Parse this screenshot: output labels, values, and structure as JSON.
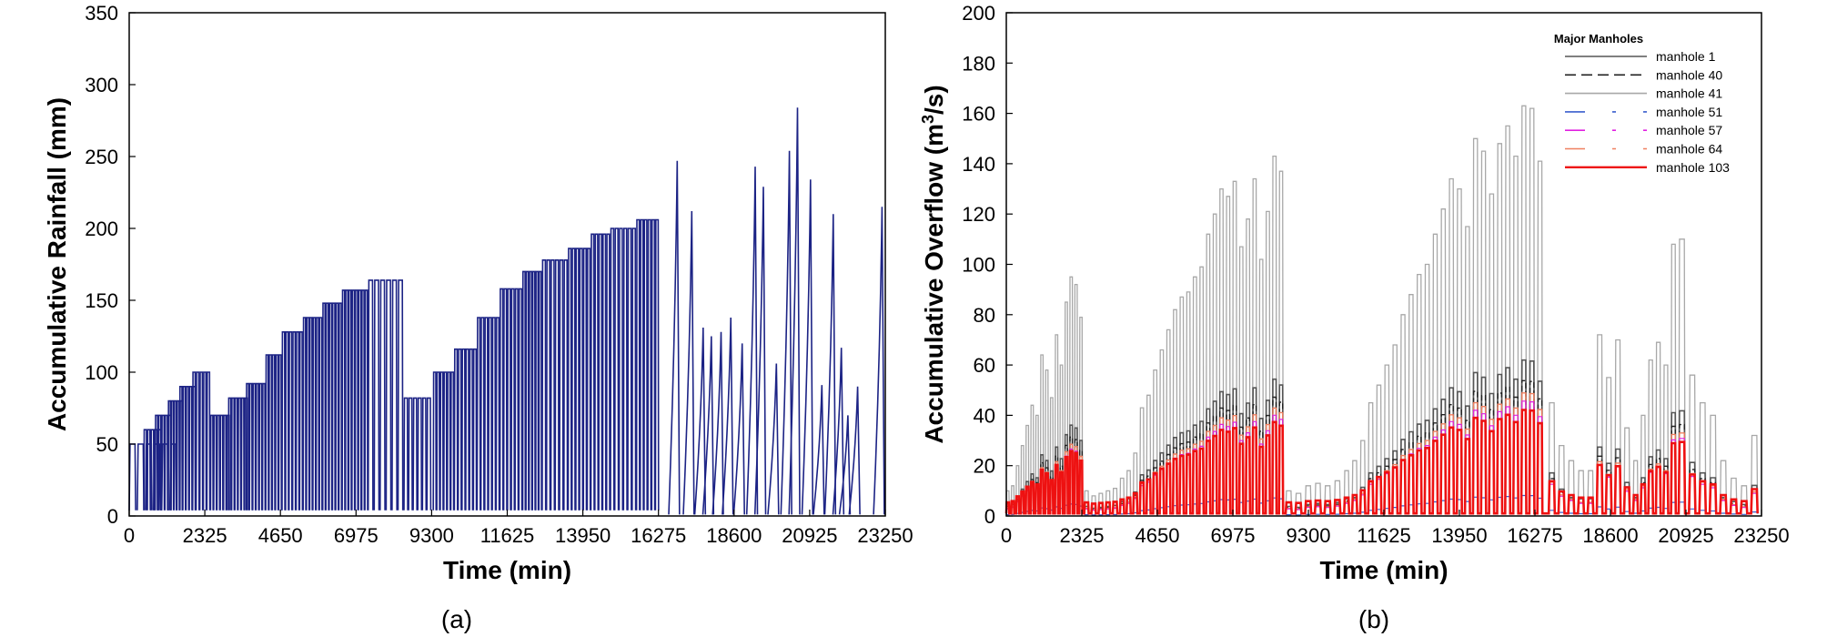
{
  "colors": {
    "rainfall": "#1c2385",
    "frame": "#000000"
  },
  "chart_data": [
    {
      "type": "line",
      "panel_label": "(a)",
      "xlabel": "Time (min)",
      "ylabel": "Accumulative Rainfall (mm)",
      "xlim": [
        0,
        23250
      ],
      "ylim": [
        0,
        350
      ],
      "xticks": [
        0,
        2325,
        4650,
        6975,
        9300,
        11625,
        13950,
        16275,
        18600,
        20925,
        23250
      ],
      "yticks": [
        0,
        50,
        100,
        150,
        200,
        250,
        300,
        350
      ],
      "series": [
        {
          "color": "#1c2385",
          "events": [
            {
              "start": 0,
              "end": 1500,
              "peak": 50,
              "n": 6
            },
            {
              "start": 450,
              "end": 1000,
              "peak": 60,
              "n": 5
            },
            {
              "start": 800,
              "end": 1300,
              "peak": 70,
              "n": 5
            },
            {
              "start": 1200,
              "end": 1650,
              "peak": 80,
              "n": 5
            },
            {
              "start": 1550,
              "end": 2050,
              "peak": 90,
              "n": 5
            },
            {
              "start": 1950,
              "end": 2500,
              "peak": 100,
              "n": 5
            },
            {
              "start": 2500,
              "end": 3100,
              "peak": 70,
              "n": 6
            },
            {
              "start": 3050,
              "end": 3650,
              "peak": 82,
              "n": 6
            },
            {
              "start": 3600,
              "end": 4200,
              "peak": 92,
              "n": 6
            },
            {
              "start": 4200,
              "end": 4700,
              "peak": 112,
              "n": 5
            },
            {
              "start": 4700,
              "end": 5350,
              "peak": 128,
              "n": 6
            },
            {
              "start": 5350,
              "end": 5950,
              "peak": 138,
              "n": 6
            },
            {
              "start": 5950,
              "end": 6550,
              "peak": 148,
              "n": 6
            },
            {
              "start": 6550,
              "end": 7350,
              "peak": 157,
              "n": 8
            },
            {
              "start": 7350,
              "end": 8450,
              "peak": 164,
              "n": 6
            },
            {
              "start": 8450,
              "end": 9300,
              "peak": 82,
              "n": 6
            },
            {
              "start": 9350,
              "end": 10000,
              "peak": 100,
              "n": 6
            },
            {
              "start": 10000,
              "end": 10700,
              "peak": 116,
              "n": 6
            },
            {
              "start": 10700,
              "end": 11400,
              "peak": 138,
              "n": 6
            },
            {
              "start": 11400,
              "end": 12100,
              "peak": 158,
              "n": 6
            },
            {
              "start": 12100,
              "end": 12700,
              "peak": 170,
              "n": 6
            },
            {
              "start": 12700,
              "end": 13500,
              "peak": 178,
              "n": 6
            },
            {
              "start": 13500,
              "end": 14200,
              "peak": 186,
              "n": 6
            },
            {
              "start": 14200,
              "end": 14800,
              "peak": 196,
              "n": 5
            },
            {
              "start": 14800,
              "end": 15600,
              "peak": 200,
              "n": 6
            },
            {
              "start": 15600,
              "end": 16300,
              "peak": 206,
              "n": 6
            }
          ],
          "spikes": [
            {
              "x": 16850,
              "peak": 247
            },
            {
              "x": 17300,
              "peak": 212
            },
            {
              "x": 17650,
              "peak": 131
            },
            {
              "x": 17900,
              "peak": 125
            },
            {
              "x": 18200,
              "peak": 128
            },
            {
              "x": 18500,
              "peak": 138
            },
            {
              "x": 18850,
              "peak": 120
            },
            {
              "x": 19250,
              "peak": 243
            },
            {
              "x": 19500,
              "peak": 229
            },
            {
              "x": 19900,
              "peak": 106
            },
            {
              "x": 20300,
              "peak": 254
            },
            {
              "x": 20550,
              "peak": 284
            },
            {
              "x": 20950,
              "peak": 234
            },
            {
              "x": 21300,
              "peak": 91
            },
            {
              "x": 21650,
              "peak": 210
            },
            {
              "x": 21900,
              "peak": 117
            },
            {
              "x": 22100,
              "peak": 70
            },
            {
              "x": 22400,
              "peak": 90
            },
            {
              "x": 23150,
              "peak": 215
            }
          ]
        }
      ]
    },
    {
      "type": "line",
      "panel_label": "(b)",
      "xlabel": "Time (min)",
      "ylabel_prefix": "Accumulative Overflow (m",
      "ylabel_sup": "3",
      "ylabel_suffix": "/s)",
      "xlim": [
        0,
        23250
      ],
      "ylim": [
        0,
        200
      ],
      "xticks": [
        0,
        2325,
        4650,
        6975,
        9300,
        11625,
        13950,
        16275,
        18600,
        20925,
        23250
      ],
      "yticks": [
        0,
        20,
        40,
        60,
        80,
        100,
        120,
        140,
        160,
        180,
        200
      ],
      "legend": {
        "title": "Major Manholes",
        "position": "top-right",
        "items": [
          {
            "label": "manhole 1",
            "color": "#555555",
            "dash": ""
          },
          {
            "label": "manhole 40",
            "color": "#222222",
            "dash": "12 6"
          },
          {
            "label": "manhole 41",
            "color": "#a8a8a8",
            "dash": ""
          },
          {
            "label": "manhole 51",
            "color": "#3a5fcd",
            "dash": "22 30 4 30"
          },
          {
            "label": "manhole 57",
            "color": "#e020e0",
            "dash": "22 30 4 30"
          },
          {
            "label": "manhole 64",
            "color": "#f08060",
            "dash": "22 30 4 30"
          },
          {
            "label": "manhole 103",
            "color": "#ee1111",
            "dash": ""
          }
        ]
      },
      "series": [
        {
          "name": "manhole 41",
          "color": "#a8a8a8",
          "width": 1.3,
          "scale": 1.0
        },
        {
          "name": "manhole 1",
          "color": "#555555",
          "width": 1.6,
          "scale": 0.38
        },
        {
          "name": "manhole 40",
          "color": "#222222",
          "width": 1.4,
          "scale": 0.33
        },
        {
          "name": "manhole 64",
          "color": "#f08060",
          "width": 1.4,
          "scale": 0.3
        },
        {
          "name": "manhole 57",
          "color": "#e020e0",
          "width": 1.2,
          "scale": 0.28
        },
        {
          "name": "manhole 51",
          "color": "#3a5fcd",
          "width": 1.2,
          "scale": 0.05
        },
        {
          "name": "manhole 103",
          "color": "#ee1111",
          "width": 2.6,
          "scale": 0.24
        }
      ],
      "overflow_groups": [
        {
          "start": 0,
          "end": 2400,
          "peaks": [
            10,
            12,
            20,
            28,
            36,
            44,
            40,
            64,
            58,
            47,
            72,
            60,
            85,
            95,
            92,
            79
          ]
        },
        {
          "start": 2400,
          "end": 3500,
          "peaks": [
            10,
            8,
            9,
            10,
            11
          ]
        },
        {
          "start": 3500,
          "end": 8600,
          "peaks": [
            15,
            18,
            25,
            43,
            48,
            58,
            66,
            74,
            82,
            87,
            89,
            95,
            99,
            112,
            120,
            130,
            127,
            133,
            107,
            118,
            134,
            102,
            121,
            143,
            137
          ]
        },
        {
          "start": 8600,
          "end": 10400,
          "peaks": [
            10,
            9,
            12,
            13,
            12,
            14
          ]
        },
        {
          "start": 10400,
          "end": 16600,
          "peaks": [
            18,
            22,
            30,
            45,
            52,
            60,
            68,
            80,
            88,
            96,
            100,
            112,
            122,
            134,
            130,
            115,
            150,
            145,
            128,
            148,
            155,
            143,
            163,
            162,
            141
          ]
        },
        {
          "start": 16700,
          "end": 17900,
          "peaks": [
            45,
            28,
            22,
            18
          ]
        },
        {
          "start": 17900,
          "end": 19300,
          "peaks": [
            18,
            72,
            55,
            70,
            35
          ]
        },
        {
          "start": 19300,
          "end": 20700,
          "peaks": [
            22,
            40,
            62,
            69,
            60,
            108
          ]
        },
        {
          "start": 20700,
          "end": 23250,
          "peaks": [
            110,
            56,
            45,
            40,
            22,
            15,
            12,
            32
          ]
        }
      ]
    }
  ],
  "panels": {
    "a_label": "(a)",
    "b_label": "(b)"
  }
}
